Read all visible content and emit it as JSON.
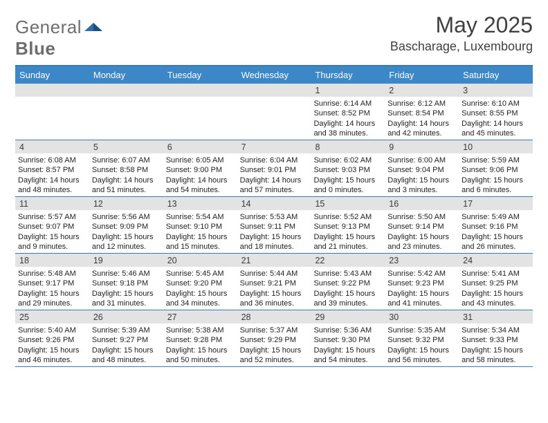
{
  "logo": {
    "text1": "General",
    "text2": "Blue"
  },
  "colors": {
    "header_bg": "#3b87c8",
    "border": "#3b77b5",
    "daynum_bg": "#e3e3e3",
    "text": "#222222",
    "logo_gray": "#6e6e6e",
    "logo_mark": "#2f6fb0"
  },
  "title": "May 2025",
  "location": "Bascharage, Luxembourg",
  "weekdays": [
    "Sunday",
    "Monday",
    "Tuesday",
    "Wednesday",
    "Thursday",
    "Friday",
    "Saturday"
  ],
  "cell_lines": [
    "sunrise",
    "sunset",
    "daylight1",
    "daylight2"
  ],
  "weeks": [
    [
      {
        "n": "",
        "sunrise": "",
        "sunset": "",
        "daylight1": "",
        "daylight2": ""
      },
      {
        "n": "",
        "sunrise": "",
        "sunset": "",
        "daylight1": "",
        "daylight2": ""
      },
      {
        "n": "",
        "sunrise": "",
        "sunset": "",
        "daylight1": "",
        "daylight2": ""
      },
      {
        "n": "",
        "sunrise": "",
        "sunset": "",
        "daylight1": "",
        "daylight2": ""
      },
      {
        "n": "1",
        "sunrise": "Sunrise: 6:14 AM",
        "sunset": "Sunset: 8:52 PM",
        "daylight1": "Daylight: 14 hours",
        "daylight2": "and 38 minutes."
      },
      {
        "n": "2",
        "sunrise": "Sunrise: 6:12 AM",
        "sunset": "Sunset: 8:54 PM",
        "daylight1": "Daylight: 14 hours",
        "daylight2": "and 42 minutes."
      },
      {
        "n": "3",
        "sunrise": "Sunrise: 6:10 AM",
        "sunset": "Sunset: 8:55 PM",
        "daylight1": "Daylight: 14 hours",
        "daylight2": "and 45 minutes."
      }
    ],
    [
      {
        "n": "4",
        "sunrise": "Sunrise: 6:08 AM",
        "sunset": "Sunset: 8:57 PM",
        "daylight1": "Daylight: 14 hours",
        "daylight2": "and 48 minutes."
      },
      {
        "n": "5",
        "sunrise": "Sunrise: 6:07 AM",
        "sunset": "Sunset: 8:58 PM",
        "daylight1": "Daylight: 14 hours",
        "daylight2": "and 51 minutes."
      },
      {
        "n": "6",
        "sunrise": "Sunrise: 6:05 AM",
        "sunset": "Sunset: 9:00 PM",
        "daylight1": "Daylight: 14 hours",
        "daylight2": "and 54 minutes."
      },
      {
        "n": "7",
        "sunrise": "Sunrise: 6:04 AM",
        "sunset": "Sunset: 9:01 PM",
        "daylight1": "Daylight: 14 hours",
        "daylight2": "and 57 minutes."
      },
      {
        "n": "8",
        "sunrise": "Sunrise: 6:02 AM",
        "sunset": "Sunset: 9:03 PM",
        "daylight1": "Daylight: 15 hours",
        "daylight2": "and 0 minutes."
      },
      {
        "n": "9",
        "sunrise": "Sunrise: 6:00 AM",
        "sunset": "Sunset: 9:04 PM",
        "daylight1": "Daylight: 15 hours",
        "daylight2": "and 3 minutes."
      },
      {
        "n": "10",
        "sunrise": "Sunrise: 5:59 AM",
        "sunset": "Sunset: 9:06 PM",
        "daylight1": "Daylight: 15 hours",
        "daylight2": "and 6 minutes."
      }
    ],
    [
      {
        "n": "11",
        "sunrise": "Sunrise: 5:57 AM",
        "sunset": "Sunset: 9:07 PM",
        "daylight1": "Daylight: 15 hours",
        "daylight2": "and 9 minutes."
      },
      {
        "n": "12",
        "sunrise": "Sunrise: 5:56 AM",
        "sunset": "Sunset: 9:09 PM",
        "daylight1": "Daylight: 15 hours",
        "daylight2": "and 12 minutes."
      },
      {
        "n": "13",
        "sunrise": "Sunrise: 5:54 AM",
        "sunset": "Sunset: 9:10 PM",
        "daylight1": "Daylight: 15 hours",
        "daylight2": "and 15 minutes."
      },
      {
        "n": "14",
        "sunrise": "Sunrise: 5:53 AM",
        "sunset": "Sunset: 9:11 PM",
        "daylight1": "Daylight: 15 hours",
        "daylight2": "and 18 minutes."
      },
      {
        "n": "15",
        "sunrise": "Sunrise: 5:52 AM",
        "sunset": "Sunset: 9:13 PM",
        "daylight1": "Daylight: 15 hours",
        "daylight2": "and 21 minutes."
      },
      {
        "n": "16",
        "sunrise": "Sunrise: 5:50 AM",
        "sunset": "Sunset: 9:14 PM",
        "daylight1": "Daylight: 15 hours",
        "daylight2": "and 23 minutes."
      },
      {
        "n": "17",
        "sunrise": "Sunrise: 5:49 AM",
        "sunset": "Sunset: 9:16 PM",
        "daylight1": "Daylight: 15 hours",
        "daylight2": "and 26 minutes."
      }
    ],
    [
      {
        "n": "18",
        "sunrise": "Sunrise: 5:48 AM",
        "sunset": "Sunset: 9:17 PM",
        "daylight1": "Daylight: 15 hours",
        "daylight2": "and 29 minutes."
      },
      {
        "n": "19",
        "sunrise": "Sunrise: 5:46 AM",
        "sunset": "Sunset: 9:18 PM",
        "daylight1": "Daylight: 15 hours",
        "daylight2": "and 31 minutes."
      },
      {
        "n": "20",
        "sunrise": "Sunrise: 5:45 AM",
        "sunset": "Sunset: 9:20 PM",
        "daylight1": "Daylight: 15 hours",
        "daylight2": "and 34 minutes."
      },
      {
        "n": "21",
        "sunrise": "Sunrise: 5:44 AM",
        "sunset": "Sunset: 9:21 PM",
        "daylight1": "Daylight: 15 hours",
        "daylight2": "and 36 minutes."
      },
      {
        "n": "22",
        "sunrise": "Sunrise: 5:43 AM",
        "sunset": "Sunset: 9:22 PM",
        "daylight1": "Daylight: 15 hours",
        "daylight2": "and 39 minutes."
      },
      {
        "n": "23",
        "sunrise": "Sunrise: 5:42 AM",
        "sunset": "Sunset: 9:23 PM",
        "daylight1": "Daylight: 15 hours",
        "daylight2": "and 41 minutes."
      },
      {
        "n": "24",
        "sunrise": "Sunrise: 5:41 AM",
        "sunset": "Sunset: 9:25 PM",
        "daylight1": "Daylight: 15 hours",
        "daylight2": "and 43 minutes."
      }
    ],
    [
      {
        "n": "25",
        "sunrise": "Sunrise: 5:40 AM",
        "sunset": "Sunset: 9:26 PM",
        "daylight1": "Daylight: 15 hours",
        "daylight2": "and 46 minutes."
      },
      {
        "n": "26",
        "sunrise": "Sunrise: 5:39 AM",
        "sunset": "Sunset: 9:27 PM",
        "daylight1": "Daylight: 15 hours",
        "daylight2": "and 48 minutes."
      },
      {
        "n": "27",
        "sunrise": "Sunrise: 5:38 AM",
        "sunset": "Sunset: 9:28 PM",
        "daylight1": "Daylight: 15 hours",
        "daylight2": "and 50 minutes."
      },
      {
        "n": "28",
        "sunrise": "Sunrise: 5:37 AM",
        "sunset": "Sunset: 9:29 PM",
        "daylight1": "Daylight: 15 hours",
        "daylight2": "and 52 minutes."
      },
      {
        "n": "29",
        "sunrise": "Sunrise: 5:36 AM",
        "sunset": "Sunset: 9:30 PM",
        "daylight1": "Daylight: 15 hours",
        "daylight2": "and 54 minutes."
      },
      {
        "n": "30",
        "sunrise": "Sunrise: 5:35 AM",
        "sunset": "Sunset: 9:32 PM",
        "daylight1": "Daylight: 15 hours",
        "daylight2": "and 56 minutes."
      },
      {
        "n": "31",
        "sunrise": "Sunrise: 5:34 AM",
        "sunset": "Sunset: 9:33 PM",
        "daylight1": "Daylight: 15 hours",
        "daylight2": "and 58 minutes."
      }
    ]
  ]
}
